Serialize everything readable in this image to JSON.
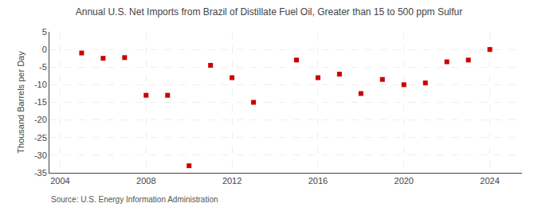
{
  "chart_data": {
    "type": "scatter",
    "title": "Annual U.S. Net Imports from Brazil of Distillate Fuel Oil, Greater than 15 to 500 ppm Sulfur",
    "ylabel": "Thousand Barrels per Day",
    "source": "Source: U.S. Energy Information Administration",
    "x": [
      2005,
      2006,
      2007,
      2008,
      2009,
      2010,
      2011,
      2012,
      2013,
      2015,
      2016,
      2017,
      2018,
      2019,
      2020,
      2021,
      2022,
      2023,
      2024
    ],
    "values": [
      -1.0,
      -2.5,
      -2.3,
      -13.0,
      -13.0,
      -33.0,
      -4.5,
      -8.0,
      -15.0,
      -3.0,
      -8.0,
      -7.0,
      -12.5,
      -8.5,
      -10.0,
      -9.5,
      -3.5,
      -3.0,
      0.0
    ],
    "color": "#cc0000",
    "marker": "square",
    "ylim": [
      -35,
      5
    ],
    "yticks": [
      5,
      0,
      -5,
      -10,
      -15,
      -20,
      -25,
      -30,
      -35
    ],
    "xlim": [
      2003.5,
      2025.5
    ],
    "xticks": [
      2004,
      2008,
      2012,
      2016,
      2020,
      2024
    ],
    "grid": true
  }
}
